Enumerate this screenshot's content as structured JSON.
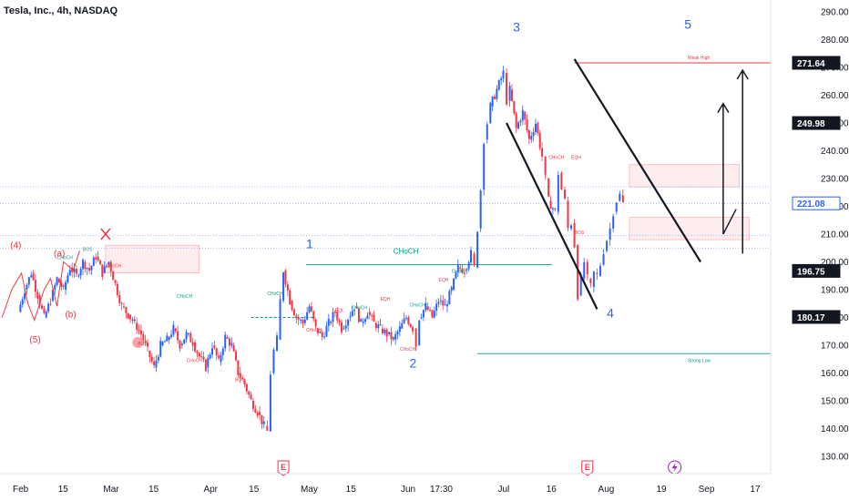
{
  "chart_data": {
    "type": "candlestick",
    "title": "Tesla, Inc., 4h, NASDAQ",
    "ylim": [
      127,
      293
    ],
    "y_ticks": [
      130,
      140,
      150,
      160,
      170,
      180,
      190,
      200,
      210,
      220,
      230,
      240,
      250,
      260,
      270,
      280,
      290
    ],
    "y_tick_labels": [
      "130.00",
      "140.00",
      "150.00",
      "160.00",
      "170.00",
      "180.00",
      "190.00",
      "200.00",
      "210.00",
      "220.00",
      "230.00",
      "240.00",
      "250.00",
      "260.00",
      "270.00",
      "280.00",
      "290.00"
    ],
    "x_ticks": [
      {
        "label": "Feb",
        "d": 0
      },
      {
        "label": "15",
        "d": 14
      },
      {
        "label": "Mar",
        "d": 28
      },
      {
        "label": "15",
        "d": 42
      },
      {
        "label": "Apr",
        "d": 59
      },
      {
        "label": "15",
        "d": 73
      },
      {
        "label": "May",
        "d": 89
      },
      {
        "label": "15",
        "d": 103
      },
      {
        "label": "Jun",
        "d": 120
      },
      {
        "label": "17:30",
        "d": 129
      },
      {
        "label": "Jul",
        "d": 150
      },
      {
        "label": "16",
        "d": 165
      },
      {
        "label": "Aug",
        "d": 181
      },
      {
        "label": "19",
        "d": 199
      },
      {
        "label": "Sep",
        "d": 212
      },
      {
        "label": "17",
        "d": 228
      }
    ],
    "price_labels": [
      {
        "value": 271.64,
        "text": "271.64",
        "bg": "#131722",
        "fg": "#ffffff"
      },
      {
        "value": 249.98,
        "text": "249.98",
        "bg": "#131722",
        "fg": "#ffffff"
      },
      {
        "value": 221.08,
        "text": "221.08",
        "bg": "#ffffff",
        "fg": "#2962ff",
        "border": "#2962ff"
      },
      {
        "value": 196.75,
        "text": "196.75",
        "bg": "#131722",
        "fg": "#ffffff"
      },
      {
        "value": 180.17,
        "text": "180.17",
        "bg": "#131722",
        "fg": "#ffffff"
      }
    ],
    "path": [
      [
        0,
        182
      ],
      [
        2,
        190
      ],
      [
        4,
        196
      ],
      [
        6,
        188
      ],
      [
        8,
        180
      ],
      [
        10,
        186
      ],
      [
        12,
        194
      ],
      [
        14,
        190
      ],
      [
        16,
        198
      ],
      [
        18,
        195
      ],
      [
        20,
        200
      ],
      [
        22,
        197
      ],
      [
        24,
        202
      ],
      [
        26,
        196
      ],
      [
        28,
        200
      ],
      [
        30,
        192
      ],
      [
        32,
        184
      ],
      [
        34,
        181
      ],
      [
        36,
        178
      ],
      [
        38,
        174
      ],
      [
        40,
        168
      ],
      [
        42,
        162
      ],
      [
        44,
        170
      ],
      [
        46,
        172
      ],
      [
        48,
        176
      ],
      [
        50,
        170
      ],
      [
        52,
        174
      ],
      [
        54,
        171
      ],
      [
        56,
        166
      ],
      [
        58,
        162
      ],
      [
        60,
        170
      ],
      [
        62,
        164
      ],
      [
        64,
        173
      ],
      [
        66,
        170
      ],
      [
        68,
        160
      ],
      [
        70,
        156
      ],
      [
        72,
        150
      ],
      [
        74,
        146
      ],
      [
        76,
        141
      ],
      [
        77,
        139
      ],
      [
        78,
        160
      ],
      [
        79,
        168
      ],
      [
        80,
        172
      ],
      [
        81,
        186
      ],
      [
        82,
        197
      ],
      [
        84,
        186
      ],
      [
        86,
        180
      ],
      [
        88,
        178
      ],
      [
        90,
        184
      ],
      [
        92,
        176
      ],
      [
        94,
        173
      ],
      [
        96,
        178
      ],
      [
        98,
        182
      ],
      [
        100,
        176
      ],
      [
        102,
        180
      ],
      [
        104,
        184
      ],
      [
        106,
        178
      ],
      [
        108,
        182
      ],
      [
        110,
        178
      ],
      [
        112,
        176
      ],
      [
        114,
        174
      ],
      [
        116,
        172
      ],
      [
        118,
        176
      ],
      [
        120,
        180
      ],
      [
        122,
        176
      ],
      [
        123,
        170
      ],
      [
        124,
        180
      ],
      [
        126,
        184
      ],
      [
        128,
        180
      ],
      [
        130,
        186
      ],
      [
        132,
        184
      ],
      [
        134,
        190
      ],
      [
        136,
        198
      ],
      [
        138,
        197
      ],
      [
        140,
        203
      ],
      [
        141,
        198
      ],
      [
        142,
        212
      ],
      [
        143,
        226
      ],
      [
        144,
        244
      ],
      [
        145,
        250
      ],
      [
        146,
        256
      ],
      [
        148,
        262
      ],
      [
        150,
        268
      ],
      [
        151,
        258
      ],
      [
        152,
        262
      ],
      [
        154,
        248
      ],
      [
        156,
        254
      ],
      [
        158,
        244
      ],
      [
        160,
        250
      ],
      [
        162,
        238
      ],
      [
        163,
        230
      ],
      [
        164,
        222
      ],
      [
        166,
        218
      ],
      [
        167,
        232
      ],
      [
        168,
        226
      ],
      [
        169,
        222
      ],
      [
        170,
        212
      ],
      [
        171,
        214
      ],
      [
        172,
        206
      ],
      [
        173,
        188
      ],
      [
        174,
        194
      ],
      [
        175,
        200
      ],
      [
        176,
        194
      ],
      [
        177,
        191
      ],
      [
        178,
        196
      ],
      [
        179,
        195
      ],
      [
        180,
        199
      ],
      [
        181,
        204
      ],
      [
        182,
        208
      ],
      [
        183,
        212
      ],
      [
        184,
        218
      ],
      [
        185,
        222
      ],
      [
        186,
        224
      ],
      [
        187,
        221
      ]
    ],
    "annotations": {
      "waves_left": [
        "(4)",
        "(a)",
        "(5)",
        "(b)"
      ],
      "waves_main": [
        "1",
        "2",
        "3",
        "4",
        "5"
      ],
      "choch": "CHoCH",
      "bos": "BOS",
      "eqh": "EQH",
      "eql": "EQL",
      "weak_high": "Weak High",
      "strong_low": "Strong Low",
      "event_e": "E"
    },
    "grid": false
  }
}
